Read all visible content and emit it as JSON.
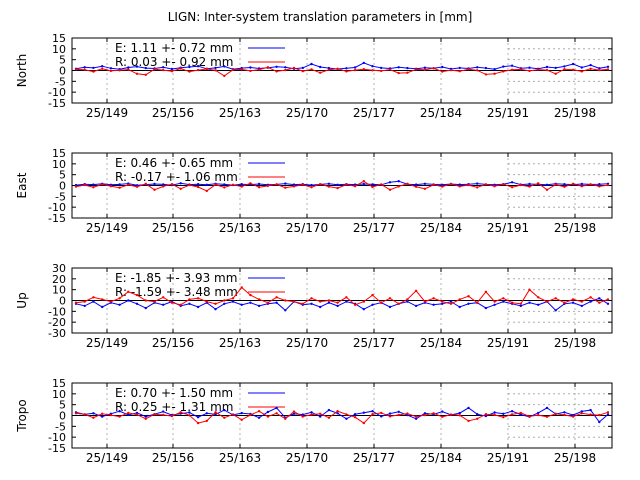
{
  "title": "LIGN: Inter-system translation parameters in [mm]",
  "colors": {
    "E": "#0000ff",
    "R": "#ff0000",
    "axis": "#000000",
    "grid": "#a0a0a0"
  },
  "x_ticks": [
    "25/149",
    "25/156",
    "25/163",
    "25/170",
    "25/177",
    "25/184",
    "25/191",
    "25/198"
  ],
  "chart_data": [
    {
      "type": "line",
      "ylabel": "North",
      "ylim": [
        -15,
        15
      ],
      "yticks": [
        "15",
        "10",
        "5",
        "0",
        "-5",
        "-10",
        "-15"
      ],
      "ytick_values": [
        15,
        10,
        5,
        0,
        -5,
        -10,
        -15
      ],
      "legend": [
        {
          "label": "E:   1.11 +- 0.72 mm"
        },
        {
          "label": "R:   0.03 +- 0.92 mm"
        }
      ],
      "series": [
        {
          "name": "E",
          "values": [
            0.8,
            1.5,
            1.2,
            2.0,
            1.0,
            0.6,
            1.4,
            1.8,
            1.1,
            0.9,
            1.5,
            0.7,
            1.3,
            1.6,
            2.0,
            0.8,
            1.2,
            1.9,
            0.6,
            1.1,
            1.4,
            0.9,
            1.3,
            1.7,
            1.5,
            0.8,
            1.2,
            3.0,
            1.6,
            1.1,
            0.7,
            1.0,
            1.4,
            3.5,
            2.0,
            1.2,
            0.9,
            1.5,
            1.1,
            0.8,
            1.3,
            1.0,
            1.6,
            0.7,
            1.2,
            0.9,
            1.5,
            1.1,
            0.6,
            1.8,
            2.2,
            1.0,
            1.3,
            0.8,
            1.6,
            1.2,
            1.9,
            3.0,
            1.4,
            2.5,
            1.0,
            1.7
          ]
        },
        {
          "name": "R",
          "values": [
            0.5,
            0.3,
            -0.5,
            0.8,
            -0.2,
            0.1,
            0.4,
            -1.5,
            -2.0,
            0.6,
            0.2,
            -0.3,
            0.9,
            -0.5,
            0.2,
            0.7,
            0.1,
            -2.5,
            0.3,
            0.5,
            -0.2,
            0.4,
            1.5,
            -0.4,
            0.2,
            1.2,
            -0.3,
            0.5,
            -1.0,
            0.3,
            0.8,
            -0.4,
            0.2,
            0.6,
            0.1,
            -0.2,
            0.4,
            -1.2,
            -1.0,
            0.5,
            0.3,
            1.0,
            -0.5,
            0.2,
            -0.3,
            0.6,
            0.1,
            -1.8,
            -1.5,
            -0.4,
            0.3,
            0.5,
            -0.2,
            0.4,
            0.2,
            -1.5,
            0.6,
            0.3,
            -0.4,
            0.8,
            0.2,
            0.5
          ]
        }
      ]
    },
    {
      "type": "line",
      "ylabel": "East",
      "ylim": [
        -15,
        15
      ],
      "yticks": [
        "15",
        "10",
        "5",
        "0",
        "-5",
        "-10",
        "-15"
      ],
      "ytick_values": [
        15,
        10,
        5,
        0,
        -5,
        -10,
        -15
      ],
      "legend": [
        {
          "label": "E:   0.46 +- 0.65 mm"
        },
        {
          "label": "R:  -0.17 +- 1.06 mm"
        }
      ],
      "series": [
        {
          "name": "E",
          "values": [
            0.2,
            0.6,
            0.4,
            0.8,
            0.3,
            0.5,
            0.9,
            0.1,
            0.4,
            0.7,
            0.5,
            0.2,
            1.0,
            0.4,
            0.6,
            0.3,
            0.8,
            0.5,
            0.2,
            0.6,
            0.4,
            0.7,
            0.3,
            0.5,
            0.9,
            0.4,
            0.6,
            0.2,
            0.5,
            0.8,
            0.3,
            0.6,
            0.4,
            0.7,
            0.5,
            0.3,
            1.5,
            2.0,
            0.6,
            0.4,
            0.8,
            0.5,
            0.3,
            0.7,
            0.4,
            0.6,
            0.9,
            0.5,
            0.3,
            0.6,
            1.5,
            0.4,
            0.7,
            0.5,
            0.3,
            0.8,
            0.6,
            0.4,
            0.7,
            0.5,
            0.6,
            0.8
          ]
        },
        {
          "name": "R",
          "values": [
            -0.5,
            0.2,
            -0.8,
            0.5,
            -0.3,
            -1.0,
            0.3,
            -0.6,
            0.8,
            -2.0,
            -0.4,
            0.6,
            -1.5,
            0.2,
            -0.7,
            -2.5,
            0.4,
            -0.9,
            0.3,
            -0.5,
            1.0,
            -0.8,
            -0.2,
            0.5,
            -1.0,
            -0.4,
            0.3,
            -0.8,
            0.6,
            -0.5,
            -1.2,
            0.4,
            -0.3,
            2.0,
            -0.7,
            0.5,
            -2.0,
            -0.4,
            0.8,
            -0.6,
            -1.5,
            0.3,
            -0.5,
            0.7,
            -0.4,
            0.2,
            -0.9,
            0.5,
            -0.3,
            0.6,
            -0.8,
            0.2,
            -0.5,
            1.0,
            -2.0,
            0.4,
            -0.6,
            0.8,
            -0.3,
            0.5,
            -0.4,
            0.2
          ]
        }
      ]
    },
    {
      "type": "line",
      "ylabel": "Up",
      "ylim": [
        -30,
        30
      ],
      "yticks": [
        "30",
        "20",
        "10",
        "0",
        "-10",
        "-20",
        "-30"
      ],
      "ytick_values": [
        30,
        20,
        10,
        0,
        -10,
        -20,
        -30
      ],
      "legend": [
        {
          "label": "E:  -1.85 +- 3.93 mm"
        },
        {
          "label": "R:  -1.59 +- 3.48 mm"
        }
      ],
      "series": [
        {
          "name": "E",
          "values": [
            -3,
            -5,
            -1,
            -6,
            -2,
            -4,
            0,
            -3,
            -7,
            -2,
            -4,
            -1,
            -5,
            -3,
            -6,
            -2,
            -8,
            -3,
            -1,
            -4,
            -2,
            -5,
            -3,
            -2,
            -9,
            -1,
            -4,
            -3,
            -6,
            -2,
            -5,
            -1,
            -3,
            -8,
            -4,
            -2,
            -6,
            -3,
            -1,
            -5,
            -2,
            -4,
            -3,
            -1,
            -6,
            -3,
            -2,
            -7,
            -4,
            -1,
            -3,
            -5,
            -2,
            -4,
            -1,
            -9,
            -3,
            -2,
            -5,
            -1,
            2,
            -3
          ]
        },
        {
          "name": "R",
          "values": [
            -2,
            -1,
            3,
            1,
            -1,
            2,
            8,
            5,
            0,
            -1,
            3,
            -2,
            -4,
            1,
            2,
            -1,
            -3,
            0,
            2,
            12,
            5,
            1,
            -2,
            3,
            0,
            -1,
            -3,
            2,
            -1,
            0,
            -2,
            3,
            -4,
            -1,
            5,
            -2,
            2,
            -3,
            1,
            9,
            -1,
            2,
            -1,
            -3,
            1,
            4,
            -2,
            8,
            -1,
            2,
            -2,
            -3,
            10,
            3,
            -1,
            2,
            -2,
            1,
            -1,
            3,
            -2,
            1
          ]
        }
      ]
    },
    {
      "type": "line",
      "ylabel": "Tropo",
      "ylim": [
        -15,
        15
      ],
      "yticks": [
        "15",
        "10",
        "5",
        "0",
        "-5",
        "-10",
        "-15"
      ],
      "ytick_values": [
        15,
        10,
        5,
        0,
        -5,
        -10,
        -15
      ],
      "legend": [
        {
          "label": "E:   0.70 +- 1.50 mm"
        },
        {
          "label": "R:   0.25 +- 1.31 mm"
        }
      ],
      "series": [
        {
          "name": "E",
          "values": [
            1.5,
            0.5,
            1.0,
            -0.5,
            0.8,
            2.0,
            0.3,
            1.2,
            -0.5,
            0.6,
            1.8,
            0.2,
            0.9,
            1.4,
            -0.8,
            1.0,
            0.5,
            2.5,
            0.3,
            1.1,
            0.7,
            -1.0,
            1.6,
            3.5,
            -1.0,
            0.8,
            0.4,
            1.5,
            -0.5,
            2.5,
            1.0,
            -1.5,
            0.6,
            1.3,
            2.0,
            -0.4,
            0.9,
            1.7,
            0.2,
            -1.5,
            1.0,
            0.5,
            1.8,
            0.3,
            1.1,
            3.5,
            0.6,
            -0.3,
            1.4,
            0.8,
            2.0,
            0.4,
            -0.6,
            1.2,
            3.5,
            0.7,
            1.5,
            0.2,
            1.9,
            2.5,
            -3.0,
            0.5
          ]
        },
        {
          "name": "R",
          "values": [
            1.0,
            0.5,
            -1.0,
            0.8,
            0.2,
            -0.5,
            1.2,
            0.4,
            -1.5,
            0.6,
            0.3,
            -0.3,
            1.5,
            0.1,
            -3.5,
            -2.5,
            1.5,
            -1.0,
            0.5,
            -2.0,
            0.3,
            2.0,
            -0.5,
            1.0,
            -1.5,
            1.8,
            -0.5,
            0.4,
            0.8,
            -1.0,
            2.0,
            0.5,
            -0.8,
            -3.5,
            0.6,
            1.2,
            -0.4,
            0.3,
            0.9,
            -0.5,
            0.2,
            1.0,
            -0.6,
            0.4,
            0.1,
            -2.5,
            -1.5,
            0.6,
            0.3,
            -0.8,
            0.5,
            1.2,
            -0.4,
            0.2,
            -0.6,
            0.8,
            0.3,
            -0.5,
            1.0,
            0.4,
            0.2,
            1.5
          ]
        }
      ]
    }
  ]
}
